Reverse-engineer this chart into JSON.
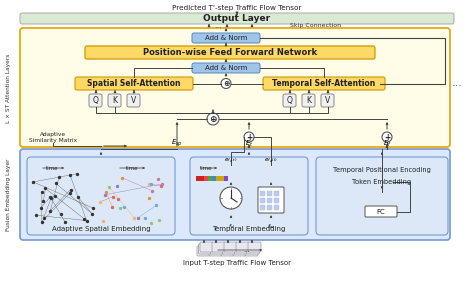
{
  "bg": "#ffffff",
  "c_output_face": "#d9ead3",
  "c_output_edge": "#aaaaaa",
  "c_st_face": "#fffde7",
  "c_st_edge": "#e6a817",
  "c_fusion_face": "#dce8fd",
  "c_fusion_edge": "#7799cc",
  "c_add_norm_face": "#9fc5e8",
  "c_add_norm_edge": "#5588bb",
  "c_ffn_face": "#ffd966",
  "c_ffn_edge": "#cc9900",
  "c_attn_face": "#ffd966",
  "c_attn_edge": "#cc9900",
  "c_qkv_face": "#f0f0f0",
  "c_qkv_edge": "#888888",
  "c_embed_face": "#dce8f8",
  "c_embed_edge": "#7799cc",
  "c_fc_face": "#ffffff",
  "c_arrow": "#444444",
  "title_top": "Predicted T'-step Traffic Flow Tensor",
  "title_bottom": "Input T-step Traffic Flow Tensor",
  "skip_conn": "Skip Connection",
  "output_text": "Output Layer",
  "add_norm": "Add & Norm",
  "ffn_text": "Position-wise Feed Forward Network",
  "spatial_text": "Spatial Self-Attention",
  "temporal_text": "Temporal Self-Attention",
  "st_label": "L × ST Attention Layers",
  "fusion_label": "Fusion Embedding Layer",
  "adaptive_label": "Adaptive\nSimilarity Matrix",
  "spatial_emb": "Adaptive Spatial Embedding",
  "temporal_emb": "Temporal Embedding",
  "temp_pos": "Temporal Positional Encoding",
  "token_emb": "Token Embedding",
  "fc_text": "FC",
  "dots_3": "..."
}
